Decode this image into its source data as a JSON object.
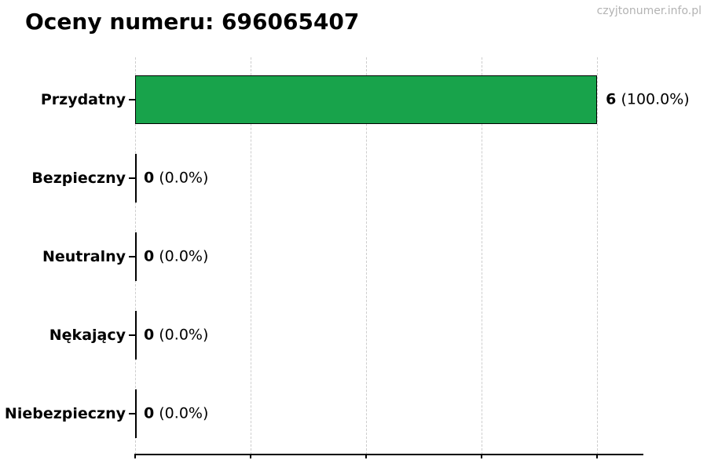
{
  "header": {
    "title": "Oceny numeru: 696065407",
    "watermark": "czyjtonumer.info.pl"
  },
  "chart_data": {
    "type": "bar",
    "orientation": "horizontal",
    "title": "Oceny numeru: 696065407",
    "watermark": "czyjtonumer.info.pl",
    "categories": [
      "Przydatny",
      "Bezpieczny",
      "Neutralny",
      "Nękający",
      "Niebezpieczny"
    ],
    "values": [
      6,
      0,
      0,
      0,
      0
    ],
    "percent_labels": [
      "(100.0%)",
      "(0.0%)",
      "(0.0%)",
      "(0.0%)",
      "(0.0%)"
    ],
    "value_labels": [
      "6 (100.0%)",
      "0 (0.0%)",
      "0 (0.0%)",
      "0 (0.0%)",
      "0 (0.0%)"
    ],
    "bar_color": "#18a34b",
    "bar_edge_color": "#000000",
    "zero_bar_line_color": "#000000",
    "grid": true,
    "grid_style": "dashed",
    "grid_color": "#cdcdcd",
    "xlim": [
      0,
      6.6
    ],
    "x_tick_values": [
      0,
      1.5,
      3.0,
      4.5,
      6.0
    ],
    "x_tick_labels_visible": false,
    "legend": "none",
    "xlabel": "",
    "ylabel": ""
  }
}
